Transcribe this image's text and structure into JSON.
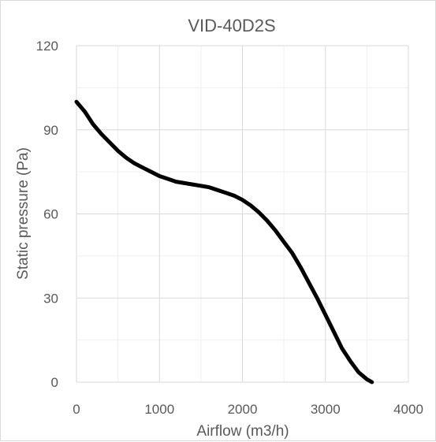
{
  "chart_data": {
    "type": "line",
    "title": "VID-40D2S",
    "xlabel": "Airflow (m3/h)",
    "ylabel": "Static pressure (Pa)",
    "xlim": [
      0,
      4000
    ],
    "ylim": [
      0,
      120
    ],
    "xticks": [
      0,
      1000,
      2000,
      3000,
      4000
    ],
    "yticks": [
      0,
      30,
      60,
      90,
      120
    ],
    "x_minor_step": 500,
    "y_minor_step": 15,
    "grid": true,
    "legend": "none",
    "series_color": "#000000",
    "series": [
      {
        "x": [
          0,
          100,
          200,
          300,
          400,
          500,
          600,
          700,
          800,
          900,
          1000,
          1100,
          1200,
          1300,
          1400,
          1500,
          1600,
          1700,
          1800,
          1900,
          2000,
          2100,
          2200,
          2300,
          2400,
          2500,
          2600,
          2700,
          2800,
          2900,
          3000,
          3100,
          3200,
          3300,
          3400,
          3500,
          3560
        ],
        "y": [
          100,
          96.5,
          92,
          88.5,
          85.5,
          82.5,
          80,
          78,
          76.5,
          75,
          73.5,
          72.5,
          71.5,
          71,
          70.5,
          70,
          69.5,
          68.5,
          67.5,
          66.5,
          65,
          63,
          60.5,
          57.5,
          54,
          50,
          46,
          41,
          35.5,
          30,
          24,
          18,
          12,
          7.5,
          3.5,
          1,
          0
        ]
      }
    ]
  }
}
